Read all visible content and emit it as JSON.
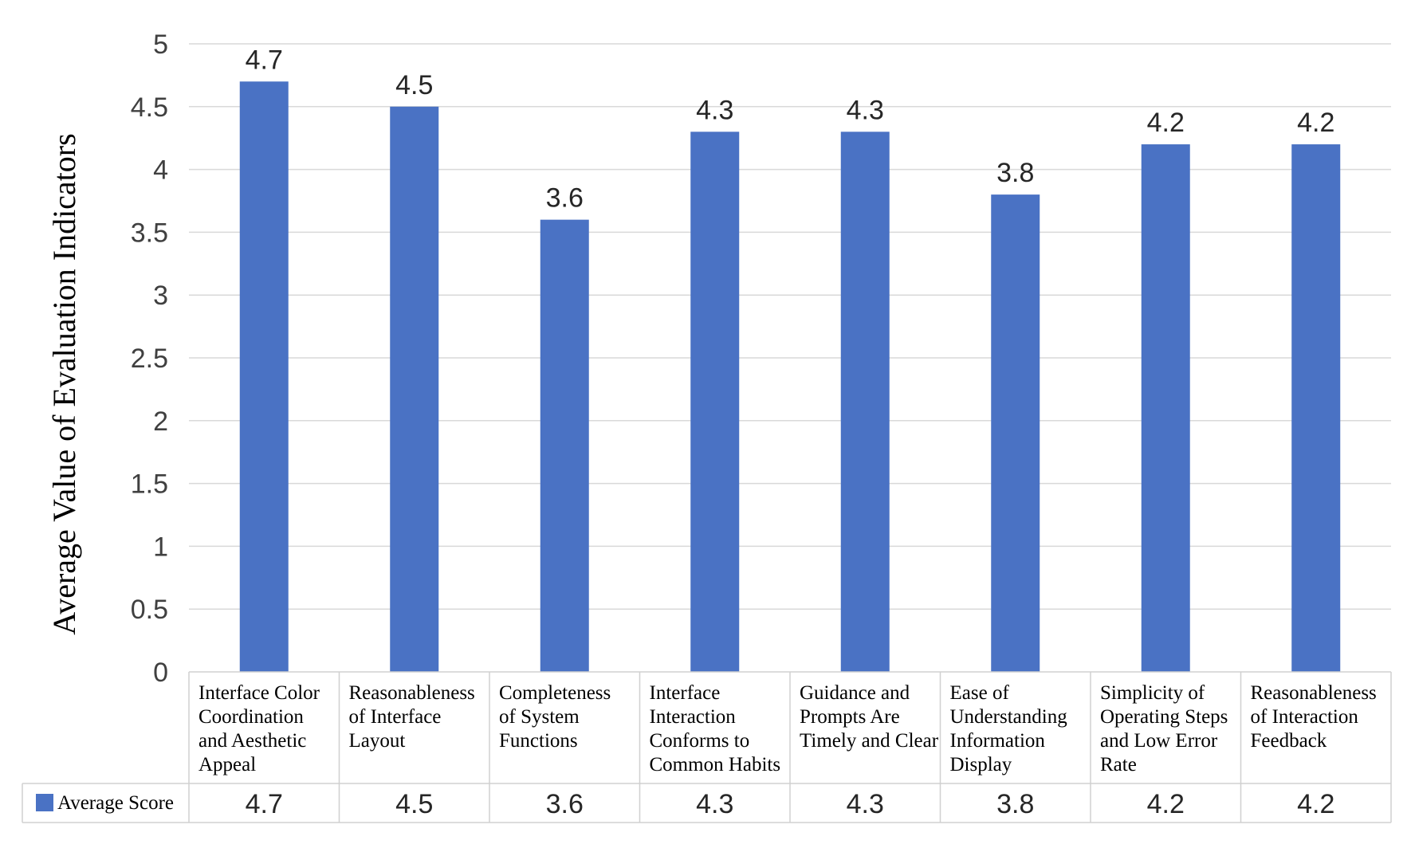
{
  "chart_data": {
    "type": "bar",
    "title": "",
    "xlabel": "",
    "ylabel": "Average Value of Evaluation Indicators",
    "ylim": [
      0,
      5
    ],
    "yticks": [
      "0",
      "0.5",
      "1",
      "1.5",
      "2",
      "2.5",
      "3",
      "3.5",
      "4",
      "4.5",
      "5"
    ],
    "grid": true,
    "legend": "data-table",
    "categories": [
      [
        "Interface Color",
        "Coordination",
        "and Aesthetic",
        "Appeal"
      ],
      [
        "Reasonableness",
        "of Interface",
        "Layout"
      ],
      [
        "Completeness",
        "of System",
        "Functions"
      ],
      [
        "Interface",
        "Interaction",
        "Conforms to",
        "Common Habits"
      ],
      [
        "Guidance and",
        "Prompts Are",
        "Timely and Clear"
      ],
      [
        "Ease of",
        "Understanding",
        "Information",
        "Display"
      ],
      [
        "Simplicity of",
        "Operating Steps",
        "and Low Error",
        "Rate"
      ],
      [
        "Reasonableness",
        "of Interaction",
        "Feedback"
      ]
    ],
    "series": [
      {
        "name": "Average Score",
        "color": "#4a72c4",
        "values": [
          4.7,
          4.5,
          3.6,
          4.3,
          4.3,
          3.8,
          4.2,
          4.2
        ],
        "labels": [
          "4.7",
          "4.5",
          "3.6",
          "4.3",
          "4.3",
          "3.8",
          "4.2",
          "4.2"
        ]
      }
    ]
  }
}
